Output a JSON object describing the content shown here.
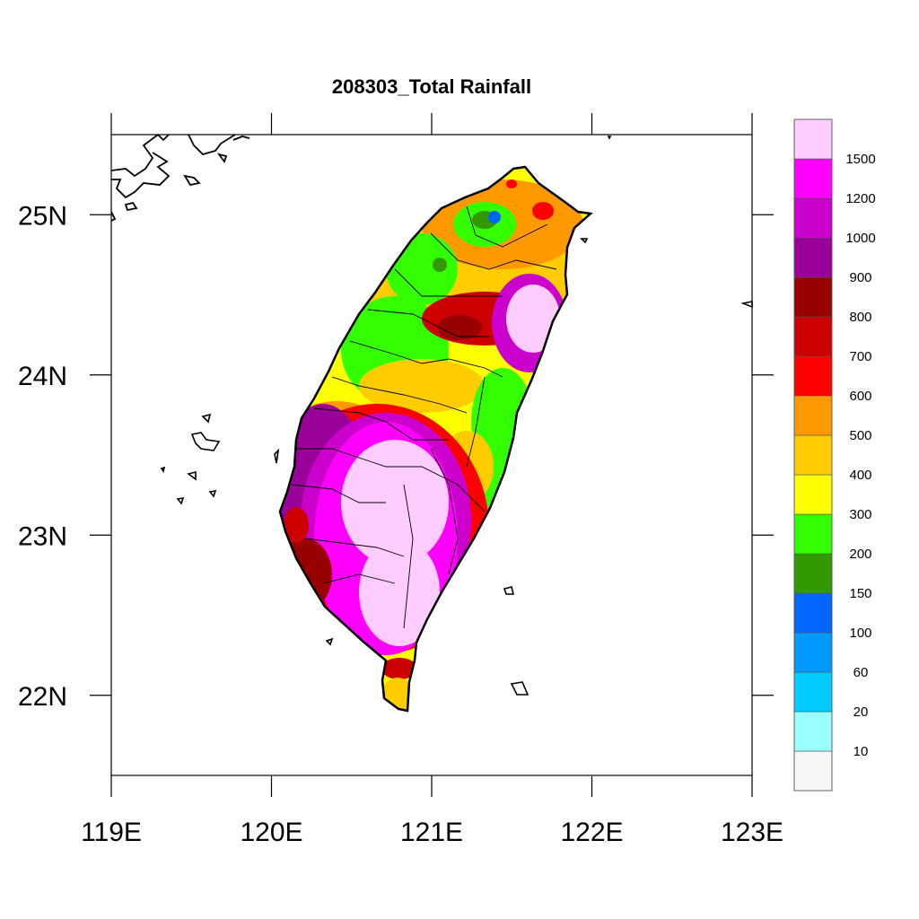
{
  "title": "208303_Total Rainfall",
  "map": {
    "x_axis": {
      "range": [
        119,
        123
      ],
      "ticks": [
        119,
        120,
        121,
        122,
        123
      ],
      "tick_labels": [
        "119E",
        "120E",
        "121E",
        "122E",
        "123E"
      ]
    },
    "y_axis": {
      "range": [
        21.5,
        25.5
      ],
      "ticks": [
        22,
        23,
        24,
        25
      ],
      "tick_labels": [
        "22N",
        "23N",
        "24N",
        "25N"
      ]
    },
    "land_outline_color": "#000000"
  },
  "colorbar": {
    "colors": [
      "#f7f7f7",
      "#99ffff",
      "#00ccff",
      "#0099ff",
      "#0066ff",
      "#339900",
      "#33ff00",
      "#ffff00",
      "#ffcc00",
      "#ff9900",
      "#ff0000",
      "#cc0000",
      "#990000",
      "#990099",
      "#cc00cc",
      "#ff00ff",
      "#ffccff"
    ],
    "levels": [
      "10",
      "20",
      "60",
      "100",
      "150",
      "200",
      "300",
      "400",
      "500",
      "600",
      "700",
      "800",
      "900",
      "1000",
      "1200",
      "1500"
    ]
  }
}
